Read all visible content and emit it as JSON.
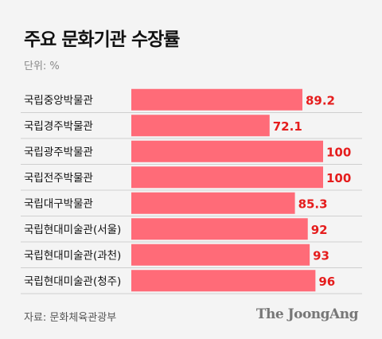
{
  "title": "주요 문화기관 수장률",
  "unit": "단위: %",
  "source": "자료: 문화체육관광부",
  "logo": "The JoongAng",
  "colors": {
    "bar": "#ff6b78",
    "value": "#e51d1d",
    "separator": "#cfcfcf"
  },
  "chart_data": {
    "type": "bar",
    "orientation": "horizontal",
    "categories": [
      "국립중앙박물관",
      "국립경주박물관",
      "국립광주박물관",
      "국립전주박물관",
      "국립대구박물관",
      "국립현대미술관(서울)",
      "국립현대미술관(과천)",
      "국립현대미술관(청주)"
    ],
    "values": [
      89.2,
      72.1,
      100,
      100,
      85.3,
      92,
      93,
      96
    ],
    "value_labels": [
      "89.2",
      "72.1",
      "100",
      "100",
      "85.3",
      "92",
      "93",
      "96"
    ],
    "title": "주요 문화기관 수장률",
    "unit": "%",
    "xlim": [
      0,
      100
    ]
  }
}
